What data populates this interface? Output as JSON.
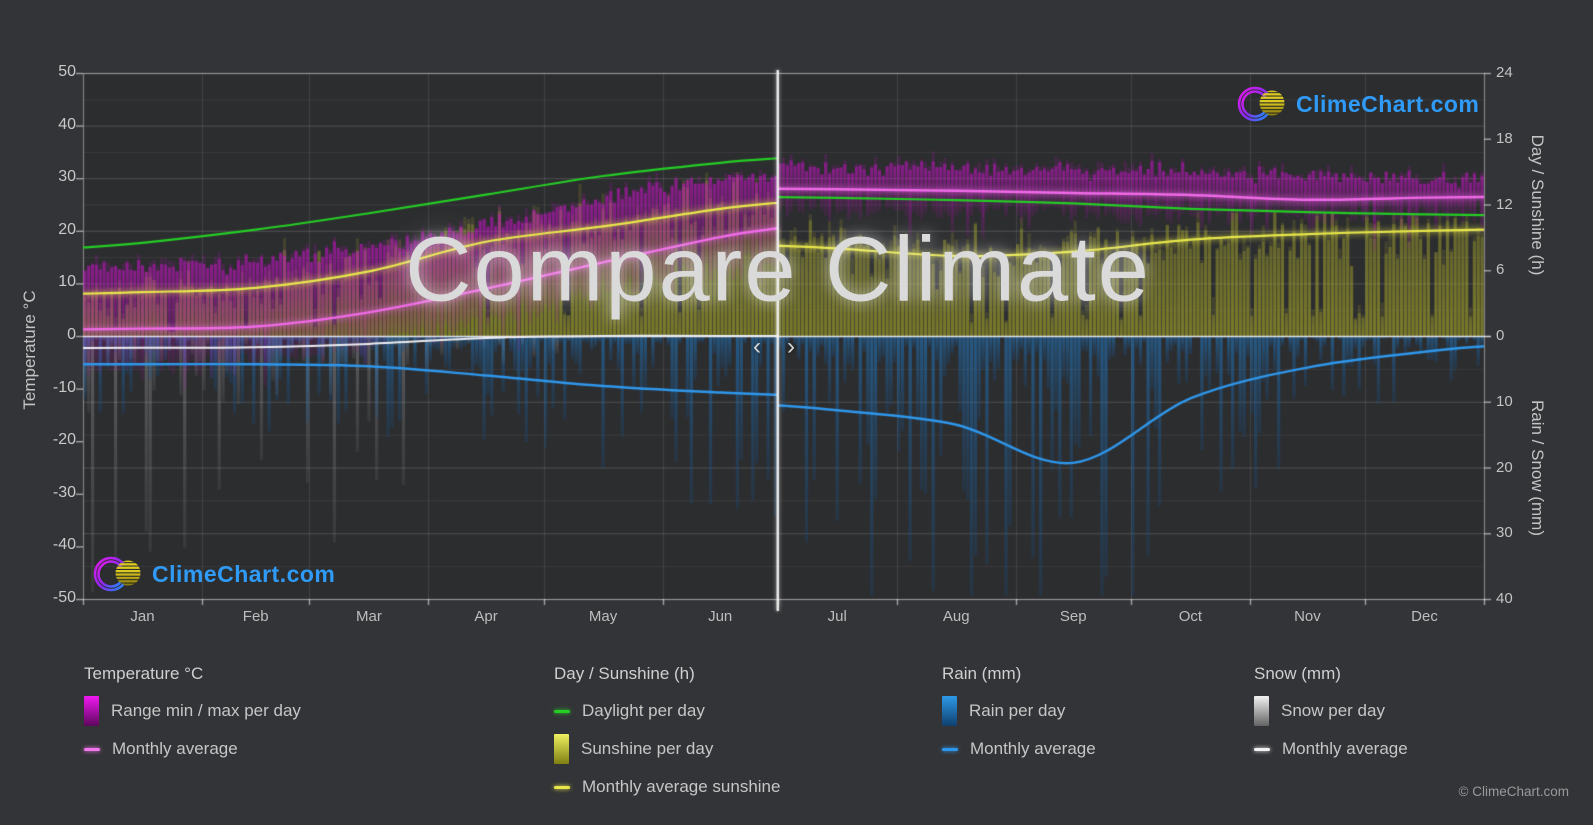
{
  "page": {
    "bg": "#333437",
    "plot_bg": "#2c2d2f"
  },
  "watermark": {
    "title": "Compare Climate"
  },
  "branding": {
    "site": "ClimeChart.com",
    "copyright": "© ClimeChart.com",
    "logo_text_color": "#2f9bf7"
  },
  "nav": {
    "prev": "‹",
    "next": "›"
  },
  "axes": {
    "temperature": {
      "title": "Temperature °C",
      "ticks": [
        50,
        40,
        30,
        20,
        10,
        0,
        -10,
        -20,
        -30,
        -40,
        -50
      ],
      "range": [
        -50,
        50
      ]
    },
    "day_sunshine": {
      "title": "Day / Sunshine (h)",
      "ticks": [
        24,
        18,
        12,
        6,
        0
      ],
      "range": [
        0,
        24
      ]
    },
    "rain_snow": {
      "title": "Rain / Snow (mm)",
      "ticks": [
        0,
        10,
        20,
        30,
        40
      ],
      "range": [
        0,
        40
      ],
      "inverted": true
    },
    "months": [
      "Jan",
      "Feb",
      "Mar",
      "Apr",
      "May",
      "Jun",
      "Jul",
      "Aug",
      "Sep",
      "Oct",
      "Nov",
      "Dec"
    ]
  },
  "legend": {
    "columns": [
      {
        "title": "Temperature °C",
        "items": [
          {
            "swatch": "gradient",
            "colors": [
              "#f318f3",
              "#5c075c"
            ],
            "label": "Range min / max per day"
          },
          {
            "swatch": "line",
            "colors": [
              "#f376ee"
            ],
            "label": "Monthly average"
          }
        ]
      },
      {
        "title": "Day / Sunshine (h)",
        "items": [
          {
            "swatch": "line",
            "colors": [
              "#25cd25"
            ],
            "label": "Daylight per day"
          },
          {
            "swatch": "gradient",
            "colors": [
              "#f0f060",
              "#7f7f12"
            ],
            "label": "Sunshine per day"
          },
          {
            "swatch": "line",
            "colors": [
              "#e7e74b"
            ],
            "label": "Monthly average sunshine"
          }
        ]
      },
      {
        "title": "Rain (mm)",
        "items": [
          {
            "swatch": "gradient",
            "colors": [
              "#2e9ae8",
              "#0f3f6e"
            ],
            "label": "Rain per day"
          },
          {
            "swatch": "line",
            "colors": [
              "#2f97eb"
            ],
            "label": "Monthly average"
          }
        ]
      },
      {
        "title": "Snow (mm)",
        "items": [
          {
            "swatch": "gradient",
            "colors": [
              "#f2f2f2",
              "#636363"
            ],
            "label": "Snow per day"
          },
          {
            "swatch": "line",
            "colors": [
              "#f2f2f4"
            ],
            "label": "Monthly average"
          }
        ]
      }
    ]
  },
  "chart_data": {
    "type": "composite",
    "title": "Compare Climate",
    "x_categories": [
      "Jan",
      "Feb",
      "Mar",
      "Apr",
      "May",
      "Jun",
      "Jul",
      "Aug",
      "Sep",
      "Oct",
      "Nov",
      "Dec"
    ],
    "split_after_month": "Jun",
    "note_left_vs_right": "left of divider and right of divider show two different compared locations",
    "axis_ranges": {
      "temperature_c": [
        -50,
        50
      ],
      "day_sunshine_h": [
        0,
        24
      ],
      "rain_snow_mm": [
        0,
        40
      ]
    },
    "grid": {
      "temp_minor_step": 5,
      "temp_major_step": 10,
      "mm_minor_step": 5,
      "mm_major_step": 10
    },
    "series": [
      {
        "id": "temp_range",
        "name": "Range min / max per day",
        "type": "bar-range",
        "axis": "temperature_c",
        "color": "#cc12cc",
        "monthly_min": [
          -6,
          -5,
          -2,
          3,
          8,
          13,
          23.5,
          23.5,
          23,
          23,
          22.5,
          23
        ],
        "monthly_max": [
          13,
          14,
          17,
          21,
          26,
          30,
          32,
          32,
          31.5,
          31,
          30.5,
          30
        ]
      },
      {
        "id": "temp_avg",
        "name": "Monthly average",
        "type": "line",
        "axis": "temperature_c",
        "color": "#f06ae8",
        "monthly": [
          1.4,
          1.8,
          4.5,
          9.0,
          14.0,
          18.8,
          27.9,
          27.6,
          27.2,
          26.8,
          25.9,
          26.3
        ]
      },
      {
        "id": "daylight",
        "name": "Daylight per day",
        "type": "line",
        "axis": "day_sunshine_h",
        "color": "#25cd25",
        "monthly": [
          8.5,
          9.7,
          11.2,
          12.9,
          14.6,
          15.8,
          12.6,
          12.4,
          12.1,
          11.6,
          11.3,
          11.1
        ]
      },
      {
        "id": "sunshine",
        "name": "Sunshine per day",
        "type": "bar",
        "axis": "day_sunshine_h",
        "color": "#97972a",
        "monthly_avg": [
          4.0,
          4.4,
          5.9,
          8.6,
          10.0,
          11.6,
          8.0,
          7.3,
          7.7,
          8.8,
          9.3,
          9.6
        ]
      },
      {
        "id": "sunshine_avg",
        "name": "Monthly average sunshine",
        "type": "line",
        "axis": "day_sunshine_h",
        "color": "#e7e74b",
        "monthly": [
          4.0,
          4.4,
          5.9,
          8.6,
          10.0,
          11.6,
          8.0,
          7.3,
          7.7,
          8.8,
          9.3,
          9.6
        ]
      },
      {
        "id": "rain",
        "name": "Rain per day",
        "type": "bar",
        "axis": "rain_snow_mm",
        "color": "#1e6aa8",
        "monthly_avg": [
          4.3,
          4.3,
          4.6,
          6.0,
          7.6,
          8.6,
          11.3,
          13.5,
          19.3,
          9.5,
          4.8,
          2.4
        ]
      },
      {
        "id": "rain_avg",
        "name": "Monthly average",
        "type": "line",
        "axis": "rain_snow_mm",
        "color": "#2f97eb",
        "monthly": [
          4.3,
          4.3,
          4.6,
          6.0,
          7.6,
          8.6,
          11.3,
          13.5,
          19.3,
          9.5,
          4.8,
          2.4
        ]
      },
      {
        "id": "snow",
        "name": "Snow per day",
        "type": "bar",
        "axis": "rain_snow_mm",
        "color": "#aaaaaa",
        "monthly_avg": [
          1.8,
          1.7,
          1.2,
          0.3,
          0,
          0,
          0,
          0,
          0,
          0,
          0,
          0
        ]
      },
      {
        "id": "snow_avg",
        "name": "Monthly average",
        "type": "line",
        "axis": "rain_snow_mm",
        "color": "#eeeef2",
        "monthly": [
          1.8,
          1.7,
          1.2,
          0.3,
          0,
          0,
          0,
          0,
          0,
          0,
          0,
          0
        ]
      }
    ]
  }
}
